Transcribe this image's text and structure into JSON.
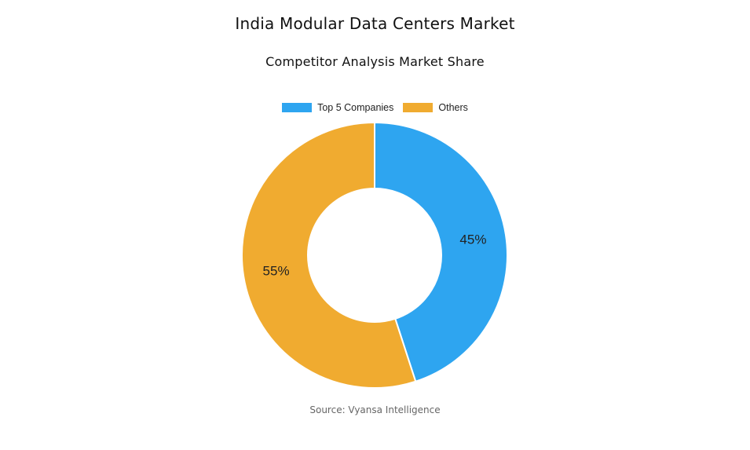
{
  "title": "India Modular Data Centers Market",
  "subtitle": "Competitor Analysis Market Share",
  "source": "Source: Vyansa Intelligence",
  "chart_data": {
    "type": "pie",
    "donut": true,
    "title": "India Modular Data Centers Market",
    "subtitle": "Competitor Analysis Market Share",
    "legend_placement": "top-center",
    "slices": [
      {
        "label": "Top 5 Companies",
        "value": 45,
        "display": "45%",
        "color": "#2ea5f0"
      },
      {
        "label": "Others",
        "value": 55,
        "display": "55%",
        "color": "#f0ab30"
      }
    ]
  }
}
